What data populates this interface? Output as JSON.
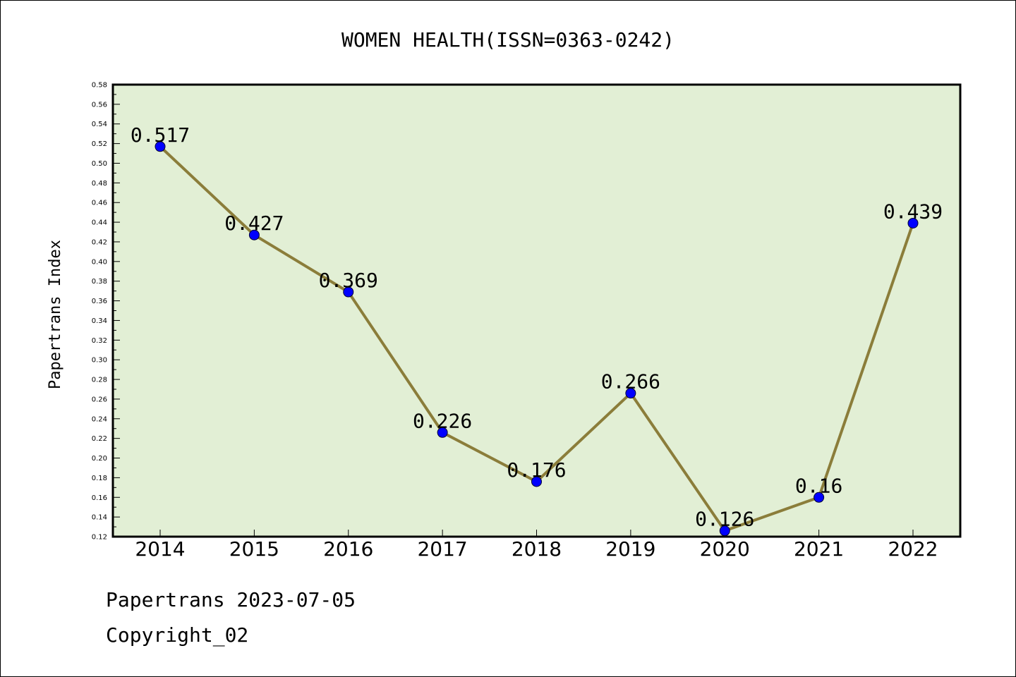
{
  "colors": {
    "plot_background": "#e2efd5",
    "line": "#8b7d3a",
    "marker": "#0000ff",
    "axis": "#000000"
  },
  "footer": {
    "source": "Papertrans 2023-07-05",
    "copyright": "Copyright_02"
  },
  "chart_data": {
    "type": "line",
    "title": "WOMEN HEALTH(ISSN=0363-0242)",
    "xlabel": "",
    "ylabel": "Papertrans Index",
    "categories": [
      "2014",
      "2015",
      "2016",
      "2017",
      "2018",
      "2019",
      "2020",
      "2021",
      "2022"
    ],
    "series": [
      {
        "values": [
          0.517,
          0.427,
          0.369,
          0.226,
          0.176,
          0.266,
          0.126,
          0.16,
          0.439
        ],
        "labels": [
          "0.517",
          "0.427",
          "0.369",
          "0.226",
          "0.176",
          "0.266",
          "0.126",
          "0.16",
          "0.439"
        ]
      }
    ],
    "ylim": [
      0.12,
      0.58
    ],
    "yticks": [
      "0.12",
      "0.14",
      "0.16",
      "0.18",
      "0.20",
      "0.22",
      "0.24",
      "0.26",
      "0.28",
      "0.30",
      "0.32",
      "0.34",
      "0.36",
      "0.38",
      "0.40",
      "0.42",
      "0.44",
      "0.46",
      "0.48",
      "0.50",
      "0.52",
      "0.54",
      "0.56",
      "0.58"
    ],
    "grid": false,
    "legend": "none"
  }
}
